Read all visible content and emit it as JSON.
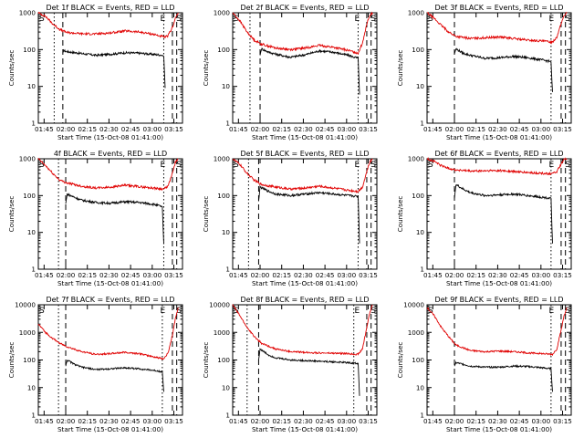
{
  "figure": {
    "xlabel": "Start Time (15-Oct-08 01:41:00)",
    "ylabel": "Counts/sec",
    "x_tick_labels": [
      "01:45",
      "02:00",
      "02:15",
      "02:30",
      "02:45",
      "03:00",
      "03:15"
    ],
    "y_tick_labels_1000": [
      "1",
      "10",
      "100",
      "1000"
    ],
    "y_tick_labels_10000": [
      "1",
      "10",
      "100",
      "1000",
      "10000"
    ],
    "colors": {
      "events": "#000000",
      "lld": "#e00000"
    }
  },
  "chart_data": [
    {
      "type": "line",
      "title": "Det 1f BLACK = Events, RED = LLD",
      "x_unit": "minutes since 01:41:00",
      "xlim": [
        0,
        100
      ],
      "ylim": [
        1,
        1000
      ],
      "yscale": "log",
      "markers": {
        "S_start": 0,
        "E": 87,
        "S_end": 97
      },
      "vlines_dotted": [
        11,
        87
      ],
      "vlines_dashed": [
        17,
        93,
        96
      ],
      "series": [
        {
          "name": "Events",
          "x": [
            17,
            20,
            30,
            40,
            50,
            60,
            70,
            80,
            84,
            86,
            87,
            88
          ],
          "y": [
            95,
            88,
            78,
            70,
            75,
            82,
            80,
            74,
            72,
            70,
            65,
            9
          ]
        },
        {
          "name": "LLD",
          "x": [
            0,
            5,
            10,
            15,
            20,
            30,
            40,
            50,
            60,
            70,
            80,
            85,
            88,
            90,
            93,
            95,
            97
          ],
          "y": [
            1000,
            800,
            500,
            350,
            290,
            270,
            265,
            285,
            320,
            300,
            260,
            230,
            215,
            240,
            400,
            700,
            1000
          ]
        }
      ]
    },
    {
      "type": "line",
      "title": "Det 2f BLACK = Events, RED = LLD",
      "x_unit": "minutes since 01:41:00",
      "xlim": [
        0,
        100
      ],
      "ylim": [
        1,
        1000
      ],
      "yscale": "log",
      "markers": {
        "S_start": 0,
        "E": 87,
        "S_end": 97
      },
      "vlines_dotted": [
        12,
        87
      ],
      "vlines_dashed": [
        19,
        93,
        96
      ],
      "series": [
        {
          "name": "Events",
          "x": [
            19,
            20,
            25,
            30,
            40,
            50,
            60,
            70,
            80,
            87,
            88
          ],
          "y": [
            70,
            105,
            85,
            75,
            62,
            72,
            92,
            85,
            70,
            58,
            6
          ]
        },
        {
          "name": "LLD",
          "x": [
            0,
            5,
            10,
            15,
            20,
            30,
            40,
            50,
            60,
            70,
            80,
            87,
            90,
            93,
            95,
            97
          ],
          "y": [
            1000,
            600,
            300,
            180,
            140,
            110,
            100,
            110,
            130,
            115,
            95,
            80,
            150,
            500,
            850,
            1000
          ]
        }
      ]
    },
    {
      "type": "line",
      "title": "Det 3f BLACK = Events, RED = LLD",
      "x_unit": "minutes since 01:41:00",
      "xlim": [
        0,
        100
      ],
      "ylim": [
        1,
        1000
      ],
      "yscale": "log",
      "markers": {
        "S_start": 0,
        "E": 87,
        "S_end": 97
      },
      "vlines_dotted": [
        86
      ],
      "vlines_dashed": [
        19,
        93,
        96
      ],
      "series": [
        {
          "name": "Events",
          "x": [
            19,
            20,
            25,
            30,
            40,
            50,
            60,
            70,
            80,
            85,
            86,
            87
          ],
          "y": [
            75,
            105,
            80,
            70,
            58,
            60,
            65,
            60,
            52,
            48,
            45,
            7
          ]
        },
        {
          "name": "LLD",
          "x": [
            0,
            5,
            10,
            15,
            20,
            30,
            40,
            50,
            60,
            70,
            80,
            87,
            90,
            93,
            95,
            97
          ],
          "y": [
            1000,
            700,
            450,
            300,
            230,
            200,
            210,
            220,
            200,
            180,
            170,
            160,
            220,
            500,
            850,
            1000
          ]
        }
      ]
    },
    {
      "type": "line",
      "title": "4f BLACK = Events, RED = LLD",
      "x_unit": "minutes since 01:41:00",
      "xlim": [
        0,
        100
      ],
      "ylim": [
        1,
        1000
      ],
      "yscale": "log",
      "markers": {
        "S_start": 0,
        "E": 87,
        "S_end": 97
      },
      "vlines_dotted": [
        14,
        87
      ],
      "vlines_dashed": [
        19,
        93,
        96
      ],
      "series": [
        {
          "name": "Events",
          "x": [
            19,
            20,
            25,
            30,
            40,
            50,
            60,
            70,
            80,
            86,
            87
          ],
          "y": [
            60,
            110,
            90,
            75,
            65,
            62,
            68,
            65,
            58,
            50,
            5
          ]
        },
        {
          "name": "LLD",
          "x": [
            0,
            5,
            10,
            15,
            20,
            30,
            40,
            50,
            60,
            70,
            80,
            87,
            90,
            93,
            95,
            97
          ],
          "y": [
            1000,
            650,
            400,
            260,
            220,
            180,
            160,
            170,
            190,
            175,
            160,
            150,
            180,
            400,
            800,
            1000
          ]
        }
      ]
    },
    {
      "type": "line",
      "title": "Det 5f BLACK = Events, RED = LLD",
      "x_unit": "minutes since 01:41:00",
      "xlim": [
        0,
        100
      ],
      "ylim": [
        1,
        1000
      ],
      "yscale": "log",
      "markers": {
        "S_start": 0,
        "E": 87,
        "S_end": 97
      },
      "vlines_dotted": [
        11,
        87
      ],
      "vlines_dashed": [
        18,
        93,
        96
      ],
      "series": [
        {
          "name": "Events",
          "x": [
            18,
            19,
            25,
            30,
            40,
            50,
            60,
            70,
            80,
            87,
            88
          ],
          "y": [
            70,
            170,
            130,
            110,
            100,
            110,
            120,
            110,
            100,
            95,
            5
          ]
        },
        {
          "name": "LLD",
          "x": [
            0,
            5,
            10,
            15,
            20,
            30,
            40,
            50,
            60,
            70,
            80,
            87,
            90,
            93,
            95,
            97
          ],
          "y": [
            1000,
            700,
            400,
            260,
            200,
            170,
            150,
            160,
            180,
            160,
            140,
            130,
            170,
            450,
            800,
            1000
          ]
        }
      ]
    },
    {
      "type": "line",
      "title": "Det 6f BLACK = Events, RED = LLD",
      "x_unit": "minutes since 01:41:00",
      "xlim": [
        0,
        100
      ],
      "ylim": [
        1,
        1000
      ],
      "yscale": "log",
      "markers": {
        "S_start": 0,
        "E": 87,
        "S_end": 97
      },
      "vlines_dotted": [
        86
      ],
      "vlines_dashed": [
        19,
        93,
        96
      ],
      "series": [
        {
          "name": "Events",
          "x": [
            19,
            20,
            25,
            30,
            40,
            50,
            60,
            70,
            80,
            86,
            87
          ],
          "y": [
            80,
            200,
            150,
            120,
            100,
            105,
            110,
            100,
            90,
            85,
            5
          ]
        },
        {
          "name": "LLD",
          "x": [
            0,
            5,
            10,
            15,
            20,
            30,
            40,
            50,
            60,
            70,
            80,
            87,
            90,
            93,
            95,
            97
          ],
          "y": [
            1000,
            850,
            650,
            550,
            500,
            460,
            470,
            480,
            450,
            420,
            400,
            390,
            450,
            700,
            950,
            1000
          ]
        }
      ]
    },
    {
      "type": "line",
      "title": "Det 7f BLACK = Events, RED = LLD",
      "x_unit": "minutes since 01:41:00",
      "xlim": [
        0,
        100
      ],
      "ylim": [
        1,
        10000
      ],
      "yscale": "log",
      "markers": {
        "S_start": 0,
        "E": 87,
        "S_end": 97
      },
      "vlines_dotted": [
        14,
        86
      ],
      "vlines_dashed": [
        19,
        93,
        96
      ],
      "series": [
        {
          "name": "Events",
          "x": [
            19,
            20,
            25,
            30,
            40,
            50,
            60,
            70,
            80,
            86,
            87
          ],
          "y": [
            60,
            100,
            70,
            55,
            45,
            48,
            52,
            48,
            42,
            38,
            7
          ]
        },
        {
          "name": "LLD",
          "x": [
            0,
            5,
            10,
            15,
            20,
            30,
            40,
            50,
            60,
            70,
            80,
            87,
            90,
            93,
            95,
            97
          ],
          "y": [
            2000,
            1000,
            600,
            400,
            300,
            200,
            160,
            170,
            190,
            170,
            130,
            110,
            180,
            800,
            3000,
            8000
          ]
        }
      ]
    },
    {
      "type": "line",
      "title": "Det 8f BLACK = Events, RED = LLD",
      "x_unit": "minutes since 01:41:00",
      "xlim": [
        0,
        100
      ],
      "ylim": [
        1,
        10000
      ],
      "yscale": "log",
      "markers": {
        "S_start": 0,
        "E": 87,
        "S_end": 97
      },
      "vlines_dotted": [
        10,
        84
      ],
      "vlines_dashed": [
        18,
        93,
        96
      ],
      "series": [
        {
          "name": "Events",
          "x": [
            18,
            19,
            25,
            30,
            40,
            50,
            60,
            70,
            80,
            87,
            88
          ],
          "y": [
            100,
            250,
            150,
            120,
            100,
            95,
            90,
            85,
            80,
            75,
            5
          ]
        },
        {
          "name": "LLD",
          "x": [
            0,
            5,
            10,
            15,
            20,
            30,
            40,
            50,
            60,
            70,
            80,
            87,
            90,
            93,
            95,
            97
          ],
          "y": [
            10000,
            4000,
            1500,
            700,
            400,
            250,
            200,
            190,
            180,
            175,
            170,
            160,
            250,
            1500,
            5000,
            10000
          ]
        }
      ]
    },
    {
      "type": "line",
      "title": "Det 9f BLACK = Events, RED = LLD",
      "x_unit": "minutes since 01:41:00",
      "xlim": [
        0,
        100
      ],
      "ylim": [
        1,
        10000
      ],
      "yscale": "log",
      "markers": {
        "S_start": 0,
        "E": 87,
        "S_end": 97
      },
      "vlines_dotted": [
        86
      ],
      "vlines_dashed": [
        19,
        93,
        96
      ],
      "series": [
        {
          "name": "Events",
          "x": [
            19,
            20,
            25,
            30,
            40,
            50,
            60,
            70,
            80,
            86,
            87
          ],
          "y": [
            60,
            80,
            70,
            60,
            55,
            55,
            60,
            58,
            52,
            48,
            7
          ]
        },
        {
          "name": "LLD",
          "x": [
            0,
            5,
            10,
            15,
            20,
            30,
            40,
            50,
            60,
            70,
            80,
            87,
            90,
            93,
            95,
            97
          ],
          "y": [
            8000,
            4000,
            1500,
            700,
            350,
            220,
            200,
            210,
            200,
            180,
            170,
            160,
            250,
            1200,
            4000,
            8000
          ]
        }
      ]
    }
  ]
}
